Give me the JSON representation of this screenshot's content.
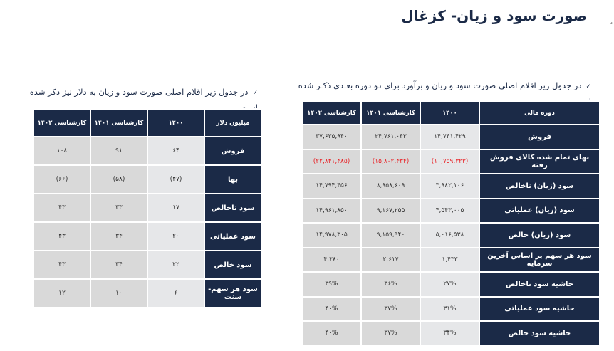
{
  "title": "صورت سود و زیان- کزغال",
  "corner_mark": "د",
  "right_section": {
    "bullet_icon": "checkmark-icon",
    "bullet_text": "در جدول زیر اقلام اصلی صورت سود و زیان و برآورد برای دو دوره بعـدی ذکـر شده است.",
    "table": {
      "headers": [
        "دوره مالی",
        "۱۴۰۰",
        "کارشناسی ۱۴۰۱",
        "کارشناسی ۱۴۰۲"
      ],
      "rows": [
        {
          "label": "فروش",
          "values": [
            "۱۴,۷۴۱,۴۲۹",
            "۲۴,۷۶۱,۰۴۳",
            "۳۷,۶۳۵,۹۴۰"
          ],
          "negative": false
        },
        {
          "label": "بهای تمام شده کالای فروش رفته",
          "values": [
            "(۱۰,۷۵۹,۳۲۳)",
            "(۱۵,۸۰۲,۴۳۴)",
            "(۲۲,۸۴۱,۴۸۵)"
          ],
          "negative": true
        },
        {
          "label": "سود (زیان) ناخالص",
          "values": [
            "۳,۹۸۲,۱۰۶",
            "۸,۹۵۸,۶۰۹",
            "۱۴,۷۹۴,۴۵۶"
          ],
          "negative": false
        },
        {
          "label": "سود (زیان) عملیاتی",
          "values": [
            "۴,۵۴۳,۰۰۵",
            "۹,۱۶۷,۲۵۵",
            "۱۴,۹۶۱,۸۵۰"
          ],
          "negative": false
        },
        {
          "label": "سود (زیان) خالص",
          "values": [
            "۵,۰۱۶,۵۳۸",
            "۹,۱۵۹,۹۴۰",
            "۱۴,۹۷۸,۳۰۵"
          ],
          "negative": false
        },
        {
          "label": "سود هر سهم بر اساس آخرین سرمایه",
          "values": [
            "۱,۴۳۳",
            "۲,۶۱۷",
            "۴,۲۸۰"
          ],
          "negative": false
        },
        {
          "label": "حاشیه سود ناخالص",
          "values": [
            "۲۷%",
            "۳۶%",
            "۳۹%"
          ],
          "negative": false
        },
        {
          "label": "حاشیه سود عملیاتی",
          "values": [
            "۳۱%",
            "۳۷%",
            "۴۰%"
          ],
          "negative": false
        },
        {
          "label": "حاشیه سود خالص",
          "values": [
            "۳۴%",
            "۳۷%",
            "۴۰%"
          ],
          "negative": false
        }
      ]
    }
  },
  "left_section": {
    "bullet_icon": "checkmark-icon",
    "bullet_text": "در جدول زیر اقلام اصلی صورت سود و زیان به دلار نیز ذکر شده است.",
    "table": {
      "headers": [
        "میلیون دلار",
        "۱۴۰۰",
        "کارشناسی ۱۴۰۱",
        "کارشناسی ۱۴۰۲"
      ],
      "rows": [
        {
          "label": "فروش",
          "values": [
            "۶۴",
            "۹۱",
            "۱۰۸"
          ]
        },
        {
          "label": "بها",
          "values": [
            "(۴۷)",
            "(۵۸)",
            "(۶۶)"
          ]
        },
        {
          "label": "سود ناخالص",
          "values": [
            "۱۷",
            "۳۳",
            "۴۳"
          ]
        },
        {
          "label": "سود عملیاتی",
          "values": [
            "۲۰",
            "۳۴",
            "۴۳"
          ]
        },
        {
          "label": "سود خالص",
          "values": [
            "۲۲",
            "۳۴",
            "۴۳"
          ]
        },
        {
          "label": "سود هر سهم- سنت",
          "values": [
            "۶",
            "۱۰",
            "۱۲"
          ]
        }
      ]
    }
  },
  "colors": {
    "header_bg": "#1b2a47",
    "cell_light": "#e6e7e9",
    "cell_gray": "#d9d9d9",
    "negative": "#e8262a"
  }
}
